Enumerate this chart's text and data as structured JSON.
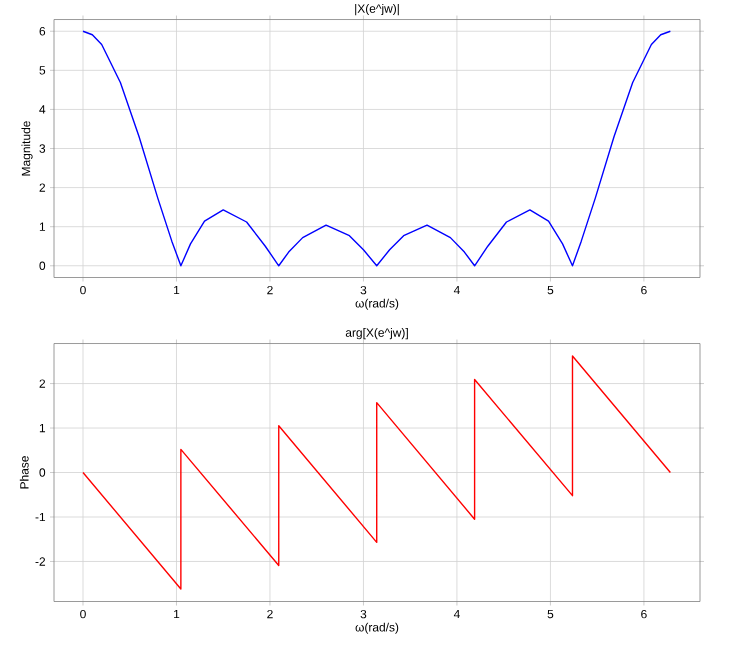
{
  "chart_data": [
    {
      "type": "line",
      "title": "|X(e^jw)|",
      "xlabel": "ω(rad/s)",
      "ylabel": "Magnitude",
      "grid": true,
      "marker": "none",
      "line_style": "solid",
      "xlim": [
        -0.31,
        6.6
      ],
      "ylim": [
        -0.3,
        6.3
      ],
      "xticks": [
        0,
        1,
        2,
        3,
        4,
        5,
        6
      ],
      "yticks": [
        0,
        1,
        2,
        3,
        4,
        5,
        6
      ],
      "series": [
        {
          "color": "#0000ff",
          "x": [
            0,
            0.1,
            0.2,
            0.4,
            0.6,
            0.8,
            0.95,
            1.047,
            1.15,
            1.3,
            1.5,
            1.75,
            1.95,
            2.094,
            2.2,
            2.35,
            2.6,
            2.85,
            3.0,
            3.142,
            3.28,
            3.43,
            3.68,
            3.93,
            4.08,
            4.189,
            4.33,
            4.53,
            4.78,
            4.98,
            5.13,
            5.236,
            5.33,
            5.48,
            5.68,
            5.88,
            6.08,
            6.18,
            6.283
          ],
          "values": [
            6,
            5.91,
            5.66,
            4.69,
            3.3,
            1.73,
            0.63,
            0,
            0.56,
            1.14,
            1.43,
            1.12,
            0.5,
            0,
            0.35,
            0.72,
            1.04,
            0.77,
            0.41,
            0,
            0.41,
            0.77,
            1.04,
            0.72,
            0.35,
            0,
            0.5,
            1.12,
            1.43,
            1.14,
            0.56,
            0,
            0.63,
            1.73,
            3.3,
            4.69,
            5.66,
            5.91,
            6
          ]
        }
      ]
    },
    {
      "type": "line",
      "title": "arg[X(e^jw)]",
      "xlabel": "ω(rad/s)",
      "ylabel": "Phase",
      "grid": true,
      "marker": "none",
      "line_style": "solid",
      "xlim": [
        -0.31,
        6.6
      ],
      "ylim": [
        -2.9,
        2.9
      ],
      "xticks": [
        0,
        1,
        2,
        3,
        4,
        5,
        6
      ],
      "yticks": [
        -2,
        -1,
        0,
        1,
        2
      ],
      "series": [
        {
          "color": "#ff0000",
          "x": [
            0,
            1.047,
            1.047,
            2.094,
            2.094,
            3.142,
            3.142,
            4.189,
            4.189,
            5.236,
            5.236,
            6.283
          ],
          "values": [
            0,
            -2.62,
            0.52,
            -2.09,
            1.05,
            -1.57,
            1.57,
            -1.05,
            2.09,
            -0.52,
            2.62,
            0
          ]
        }
      ]
    }
  ]
}
